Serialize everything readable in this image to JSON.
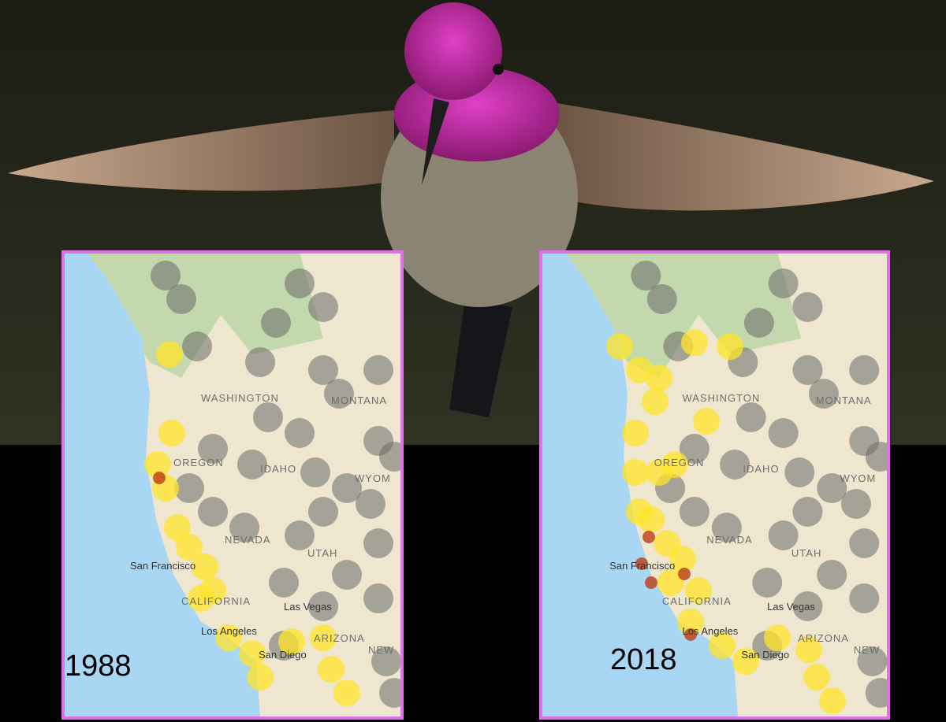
{
  "panels": [
    {
      "year": "1988",
      "labels": [
        "WASHINGTON",
        "MONTANA",
        "OREGON",
        "IDAHO",
        "WYOM",
        "NEVADA",
        "UTAH",
        "San Francisco",
        "CALIFORNIA",
        "Las Vegas",
        "Los Angeles",
        "San Diego",
        "ARIZONA",
        "NEW"
      ]
    },
    {
      "year": "2018",
      "labels": [
        "WASHINGTON",
        "MONTANA",
        "OREGON",
        "IDAHO",
        "WYOM",
        "NEVADA",
        "UTAH",
        "San Francisco",
        "CALIFORNIA",
        "Las Vegas",
        "Los Angeles",
        "San Diego",
        "ARIZONA",
        "NEW"
      ]
    }
  ]
}
